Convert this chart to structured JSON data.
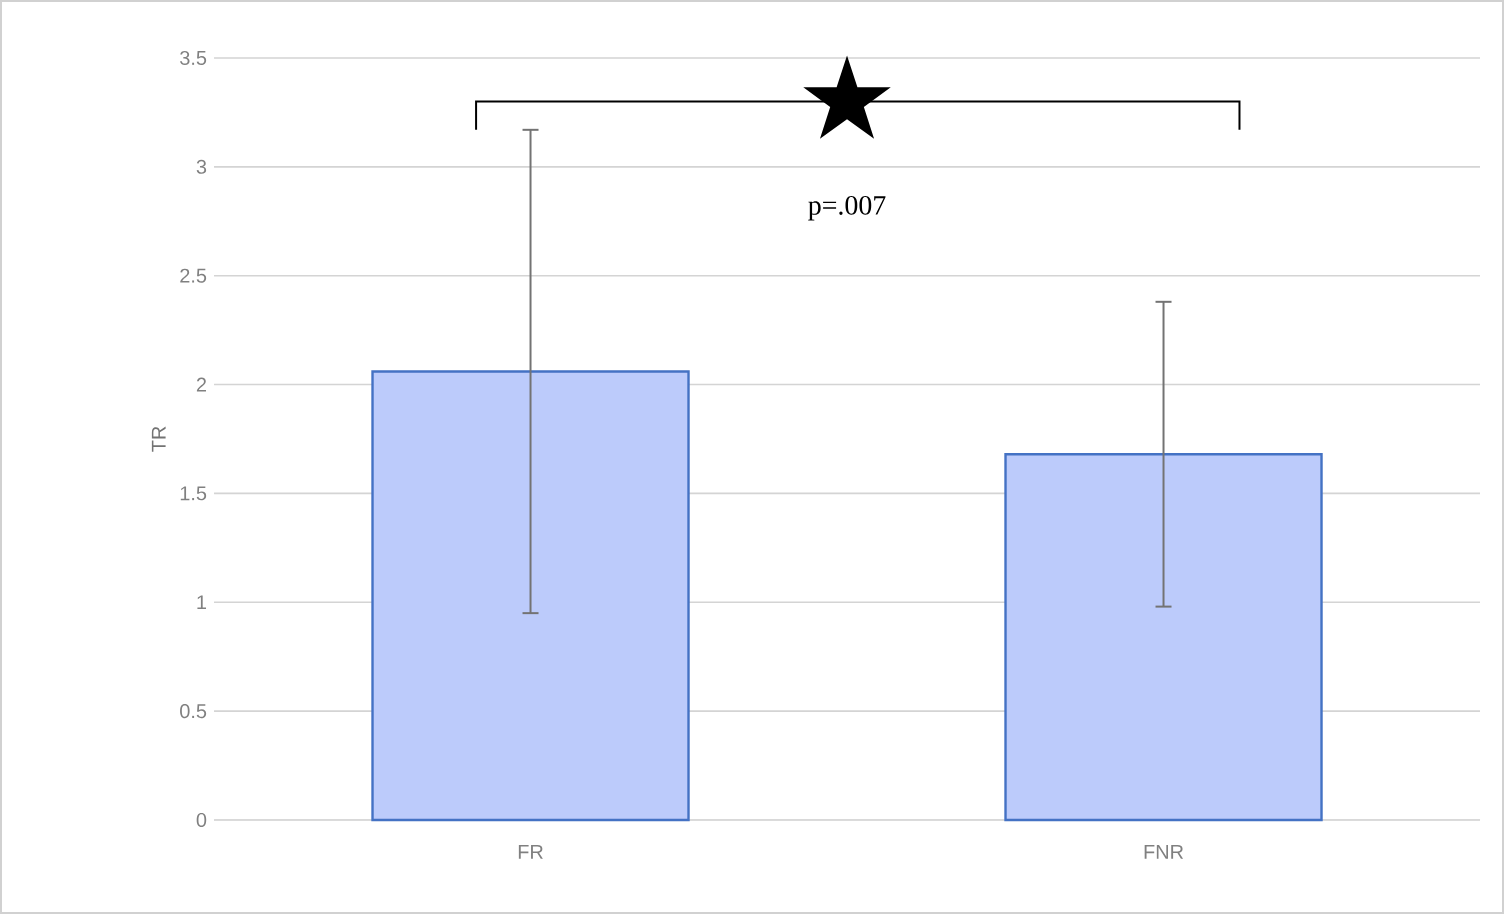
{
  "chart_data": {
    "type": "bar",
    "ylabel": "TR",
    "categories": [
      "FR",
      "FNR"
    ],
    "values": [
      2.06,
      1.68
    ],
    "errors": [
      1.11,
      0.7
    ],
    "color": "#bccbfb",
    "ylim": [
      0,
      3.5
    ],
    "yticks": [
      0,
      0.5,
      1,
      1.5,
      2,
      2.5,
      3,
      3.5
    ],
    "grid": "y",
    "annotations": [
      "p=.007"
    ]
  }
}
